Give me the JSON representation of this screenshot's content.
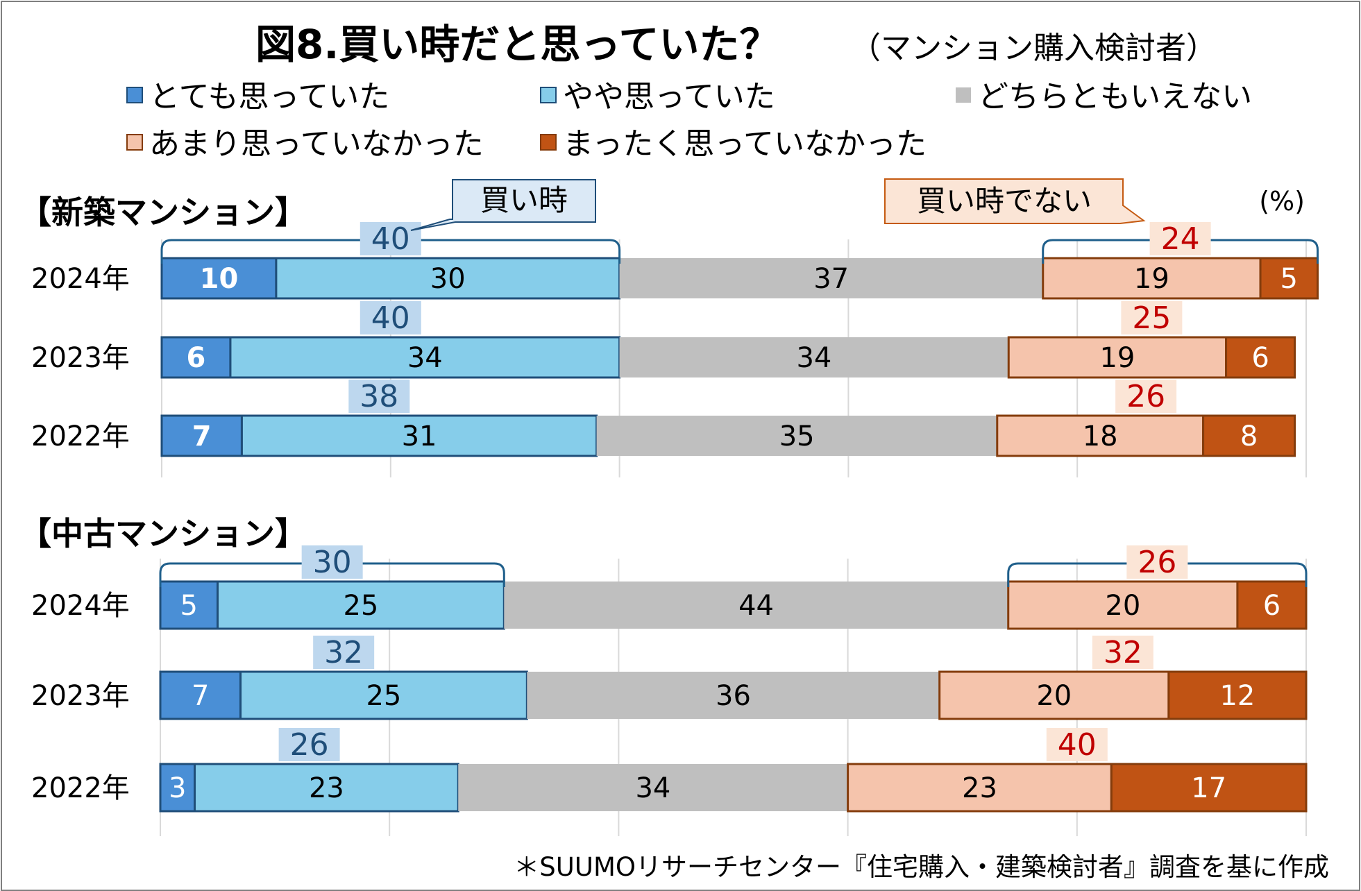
{
  "chart_data": {
    "type": "bar",
    "orientation": "horizontal",
    "stacked": true,
    "title": "図8.買い時だと思っていた？",
    "subtitle": "（マンション購入検討者）",
    "unit_label": "(%)",
    "source_note": "＊SUUMOリサーチセンター『住宅購入・建築検討者』調査を基に作成",
    "bracket_label_buy": "買い時",
    "bracket_label_notbuy": "買い時でない",
    "legend": [
      {
        "label": "とても思っていた",
        "color": "#4a8fd6"
      },
      {
        "label": "やや思っていた",
        "color": "#86cdea"
      },
      {
        "label": "どちらともいえない",
        "color": "#bfbfbf"
      },
      {
        "label": "あまり思っていなかった",
        "color": "#f5c4ac"
      },
      {
        "label": "まったく思っていなかった",
        "color": "#c05314"
      }
    ],
    "xlim": [
      0,
      100
    ],
    "grid": true,
    "panels": [
      {
        "title": "【新築マンション】",
        "rows": [
          {
            "label": "2024年",
            "values": [
              10,
              30,
              37,
              19,
              5
            ],
            "buy_total": 40,
            "notbuy_total": 24
          },
          {
            "label": "2023年",
            "values": [
              6,
              34,
              34,
              19,
              6
            ],
            "buy_total": 40,
            "notbuy_total": 25
          },
          {
            "label": "2022年",
            "values": [
              7,
              31,
              35,
              18,
              8
            ],
            "buy_total": 38,
            "notbuy_total": 26
          }
        ]
      },
      {
        "title": "【中古マンション】",
        "rows": [
          {
            "label": "2024年",
            "values": [
              5,
              25,
              44,
              20,
              6
            ],
            "buy_total": 30,
            "notbuy_total": 26
          },
          {
            "label": "2023年",
            "values": [
              7,
              25,
              36,
              20,
              12
            ],
            "buy_total": 32,
            "notbuy_total": 32
          },
          {
            "label": "2022年",
            "values": [
              3,
              23,
              34,
              23,
              17
            ],
            "buy_total": 26,
            "notbuy_total": 40
          }
        ]
      }
    ]
  }
}
